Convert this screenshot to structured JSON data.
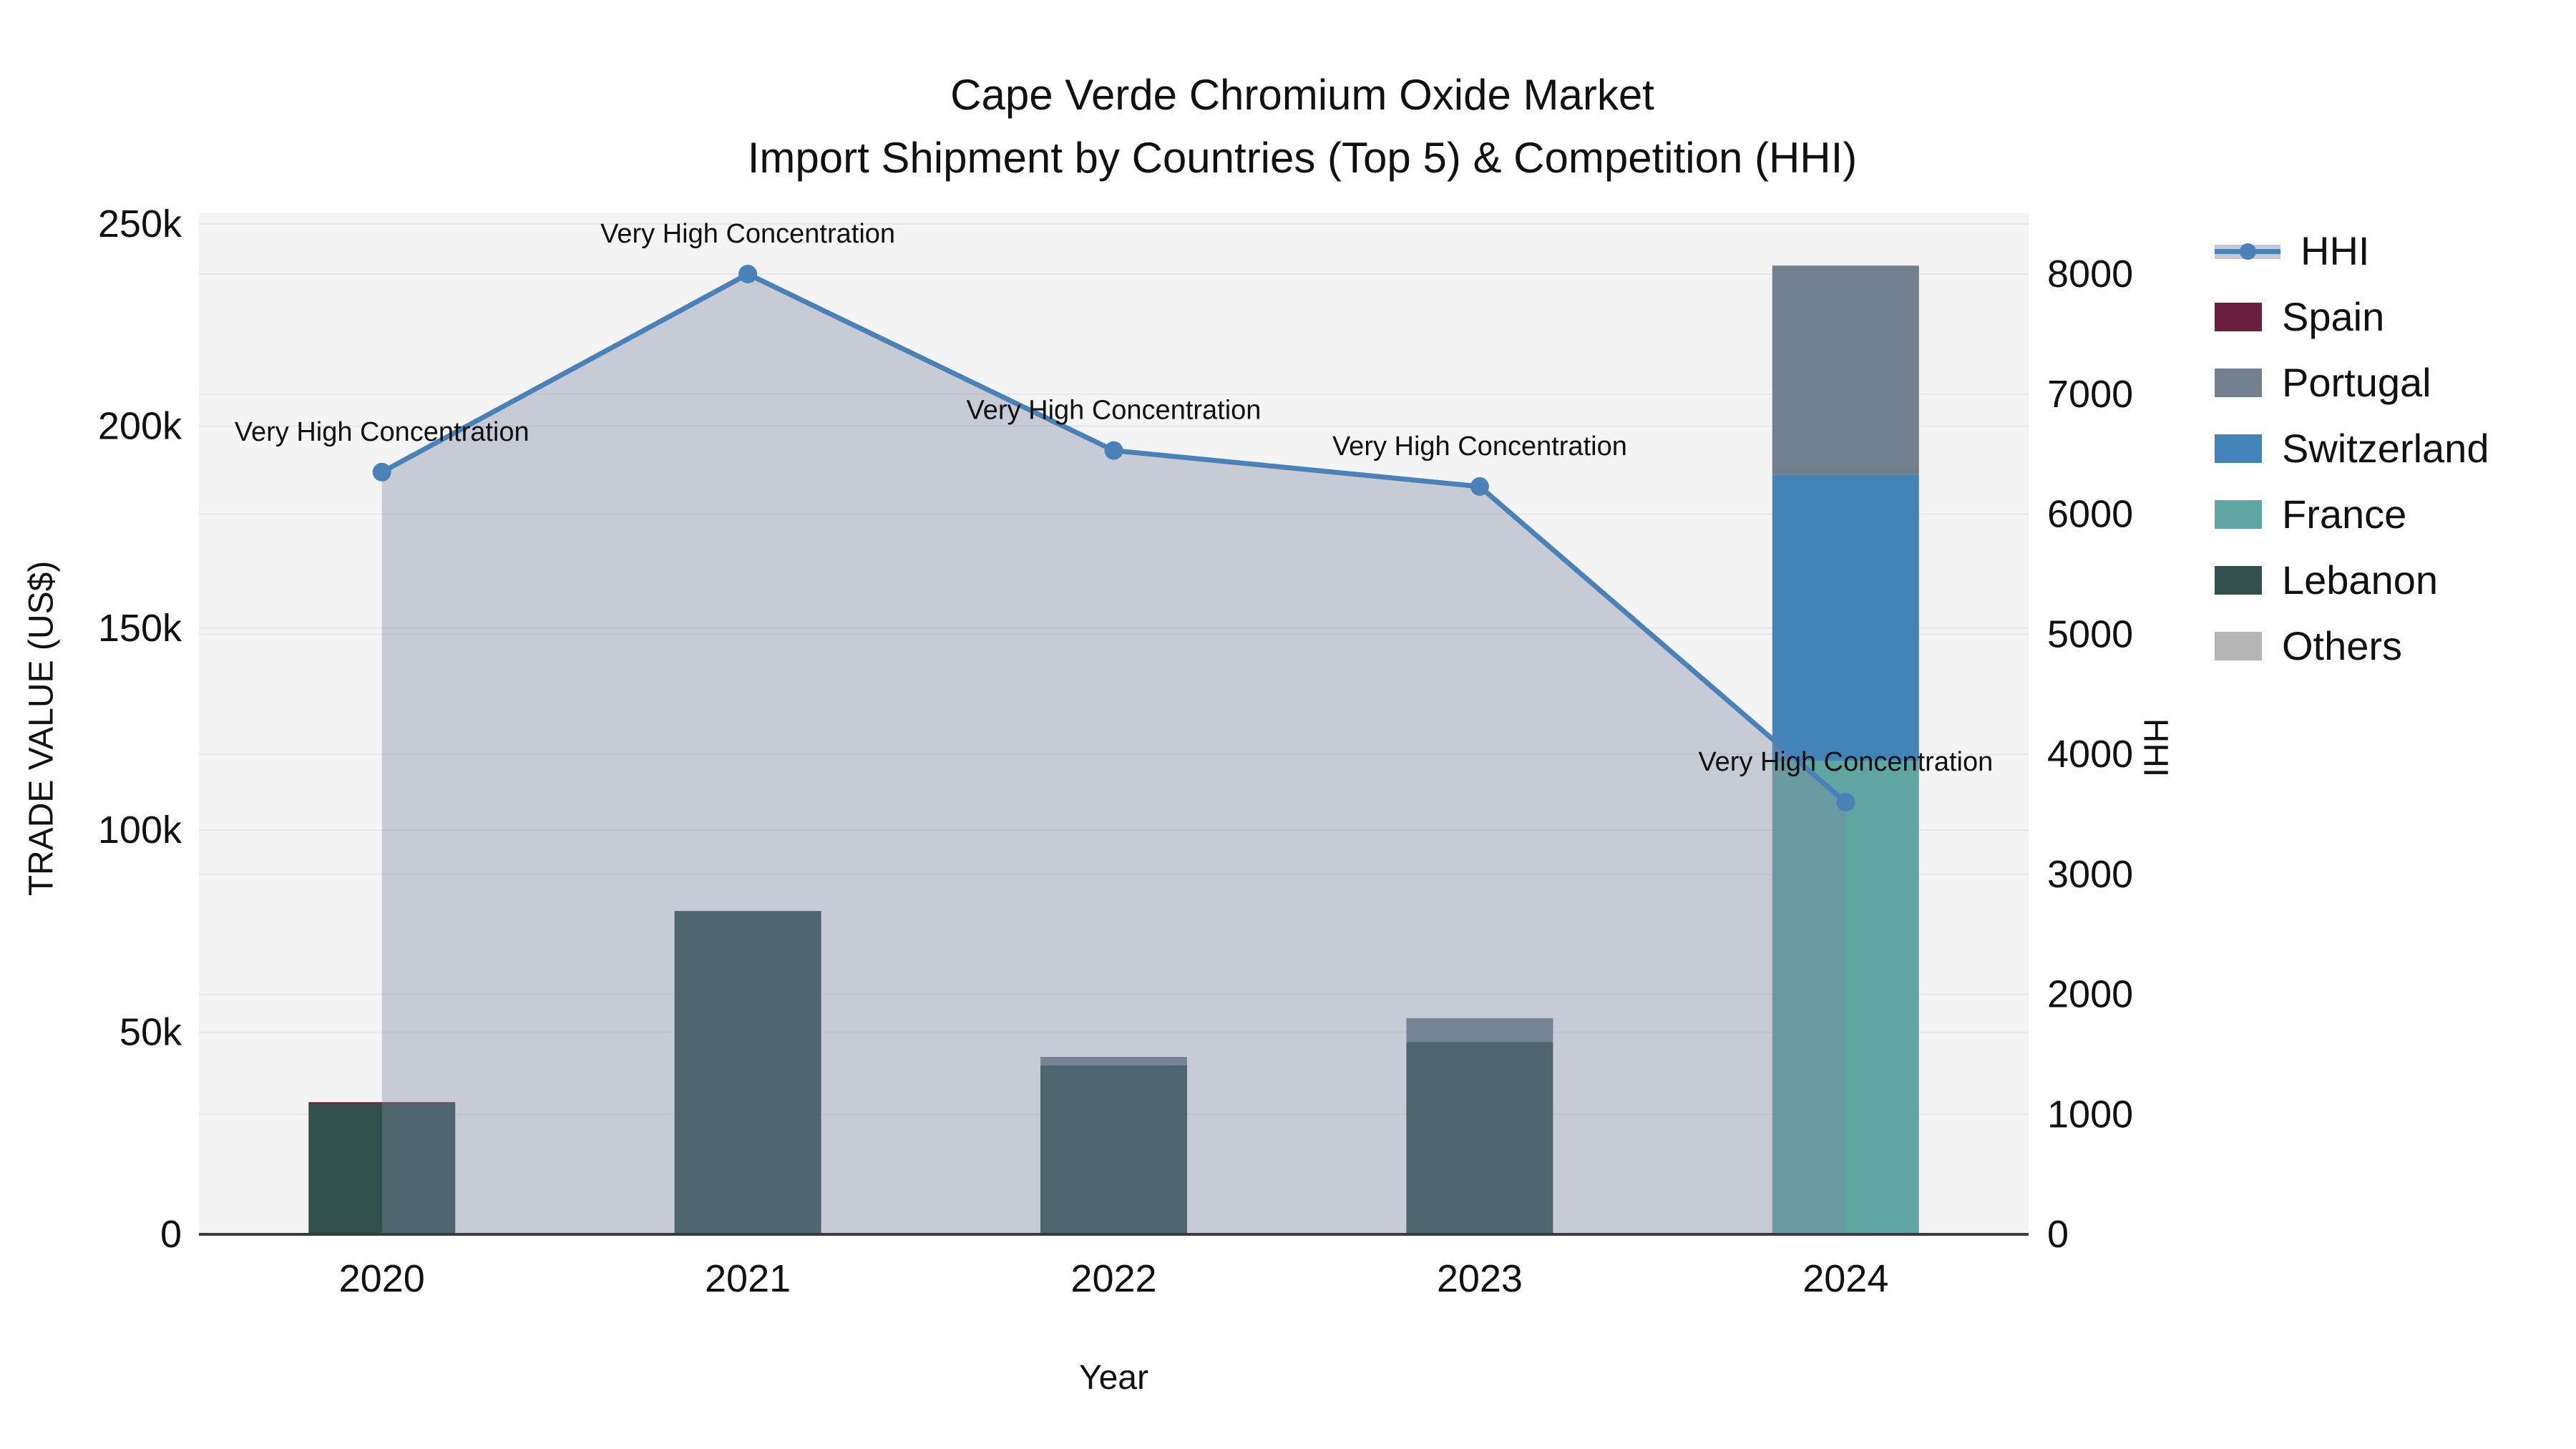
{
  "title": {
    "line1": "Cape Verde Chromium Oxide Market",
    "line2": "Import Shipment by Countries (Top 5) & Competition (HHI)"
  },
  "axes": {
    "x_label": "Year",
    "y_left_label": "TRADE VALUE (US$)",
    "y_right_label": "HHI"
  },
  "legend": {
    "items": [
      {
        "label": "HHI",
        "color": "#4A81B6",
        "type": "line"
      },
      {
        "label": "Spain",
        "color": "#6B1F3E",
        "type": "swatch"
      },
      {
        "label": "Portugal",
        "color": "#72808D",
        "type": "swatch"
      },
      {
        "label": "Switzerland",
        "color": "#4384B8",
        "type": "swatch"
      },
      {
        "label": "France",
        "color": "#5FA5A1",
        "type": "swatch"
      },
      {
        "label": "Lebanon",
        "color": "#31504C",
        "type": "swatch"
      },
      {
        "label": "Others",
        "color": "#B5B5B5",
        "type": "swatch"
      }
    ]
  },
  "chart_data": {
    "type": "combo-stacked-bar-line",
    "title": "Cape Verde Chromium Oxide Market — Import Shipment by Countries (Top 5) & Competition (HHI)",
    "categories": [
      "2020",
      "2021",
      "2022",
      "2023",
      "2024"
    ],
    "xlabel": "Year",
    "ylabel_left": "TRADE VALUE (US$)",
    "ylabel_right": "HHI",
    "bar_unit": "US$",
    "series": [
      {
        "name": "Spain",
        "color": "#6B1F3E",
        "values": [
          400,
          0,
          0,
          0,
          0
        ]
      },
      {
        "name": "Portugal",
        "color": "#72808D",
        "values": [
          0,
          0,
          2100,
          5900,
          51700
        ]
      },
      {
        "name": "Switzerland",
        "color": "#4384B8",
        "values": [
          0,
          0,
          0,
          0,
          70800
        ]
      },
      {
        "name": "France",
        "color": "#5FA5A1",
        "values": [
          0,
          0,
          0,
          0,
          117200
        ]
      },
      {
        "name": "Lebanon",
        "color": "#31504C",
        "values": [
          32300,
          80000,
          41800,
          47600,
          0
        ]
      },
      {
        "name": "Others",
        "color": "#B5B5B5",
        "values": [
          0,
          0,
          0,
          0,
          0
        ]
      }
    ],
    "line": {
      "name": "HHI",
      "color": "#4A81B6",
      "area_fill": "rgba(124,138,162,0.38)",
      "values": [
        6350,
        8000,
        6530,
        6230,
        3600
      ]
    },
    "annotations": [
      "Very High Concentration",
      "Very High Concentration",
      "Very High Concentration",
      "Very High Concentration",
      "Very High Concentration"
    ],
    "y_left": {
      "min": 0,
      "max": 250000,
      "ticks": [
        {
          "v": 0,
          "label": "0"
        },
        {
          "v": 50000,
          "label": "50k"
        },
        {
          "v": 100000,
          "label": "100k"
        },
        {
          "v": 150000,
          "label": "150k"
        },
        {
          "v": 200000,
          "label": "200k"
        },
        {
          "v": 250000,
          "label": "250k"
        }
      ]
    },
    "y_right": {
      "min": 0,
      "max": 8000,
      "ticks": [
        {
          "v": 0,
          "label": "0"
        },
        {
          "v": 1000,
          "label": "1000"
        },
        {
          "v": 2000,
          "label": "2000"
        },
        {
          "v": 3000,
          "label": "3000"
        },
        {
          "v": 4000,
          "label": "4000"
        },
        {
          "v": 5000,
          "label": "5000"
        },
        {
          "v": 6000,
          "label": "6000"
        },
        {
          "v": 7000,
          "label": "7000"
        },
        {
          "v": 8000,
          "label": "8000"
        }
      ]
    },
    "grid": true,
    "legend_position": "right",
    "plot_background": "#F4F4F5",
    "grid_color": "#E7E7E9"
  }
}
